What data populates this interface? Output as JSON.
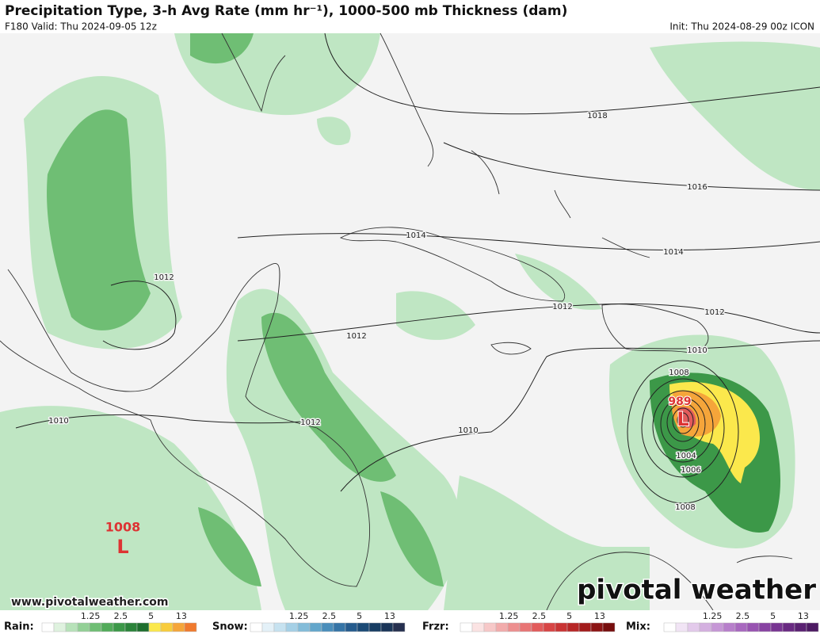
{
  "header": {
    "title": "Precipitation Type, 3-h Avg Rate (mm hr⁻¹), 1000-500 mb Thickness (dam)",
    "valid": "F180 Valid: Thu 2024-09-05 12z",
    "init": "Init: Thu 2024-08-29 00z ICON"
  },
  "map": {
    "isobar_labels": [
      "1018",
      "1016",
      "1014",
      "1014",
      "1012",
      "1012",
      "1012",
      "1012",
      "1012",
      "1010",
      "1010",
      "1010",
      "1008",
      "1008",
      "1006",
      "1004"
    ],
    "lows": [
      {
        "pressure": "989",
        "symbol": "L"
      },
      {
        "pressure": "1008",
        "symbol": "L"
      }
    ]
  },
  "footer": {
    "website": "www.pivotalweather.com",
    "logo": "pivotal weather"
  },
  "legend": [
    {
      "label": "Rain:",
      "ticks": [
        "1.25",
        "2.5",
        "5",
        "13"
      ],
      "colors": [
        "#ffffff",
        "#dff2df",
        "#b7e2b9",
        "#93d096",
        "#6fbe74",
        "#52ab5a",
        "#3c9848",
        "#2b833a",
        "#1e6e2e",
        "#fbe84c",
        "#f8cc3c",
        "#f5a53a",
        "#f07a2e"
      ]
    },
    {
      "label": "Snow:",
      "ticks": [
        "1.25",
        "2.5",
        "5",
        "13"
      ],
      "colors": [
        "#ffffff",
        "#e4f1f8",
        "#c6e2f0",
        "#a5d0e6",
        "#83bcd9",
        "#63a6cb",
        "#4a8ebb",
        "#3574a6",
        "#255b8d",
        "#1b4a76",
        "#173d63",
        "#1a3558",
        "#26304f"
      ]
    },
    {
      "label": "Frzr:",
      "ticks": [
        "1.25",
        "2.5",
        "5",
        "13"
      ],
      "colors": [
        "#ffffff",
        "#fbe3e3",
        "#f7c8c8",
        "#f2abab",
        "#ed8f8f",
        "#e87575",
        "#e25b5b",
        "#d84545",
        "#c93434",
        "#b72727",
        "#a21c1c",
        "#8c1414",
        "#760d0d"
      ]
    },
    {
      "label": "Mix:",
      "ticks": [
        "1.25",
        "2.5",
        "5",
        "13"
      ],
      "colors": [
        "#ffffff",
        "#f1e4f5",
        "#e3caeb",
        "#d4b0e0",
        "#c697d6",
        "#b77fcb",
        "#a868bf",
        "#9854b1",
        "#8843a2",
        "#783592",
        "#692a82",
        "#5a2172",
        "#4c1a62"
      ]
    }
  ]
}
